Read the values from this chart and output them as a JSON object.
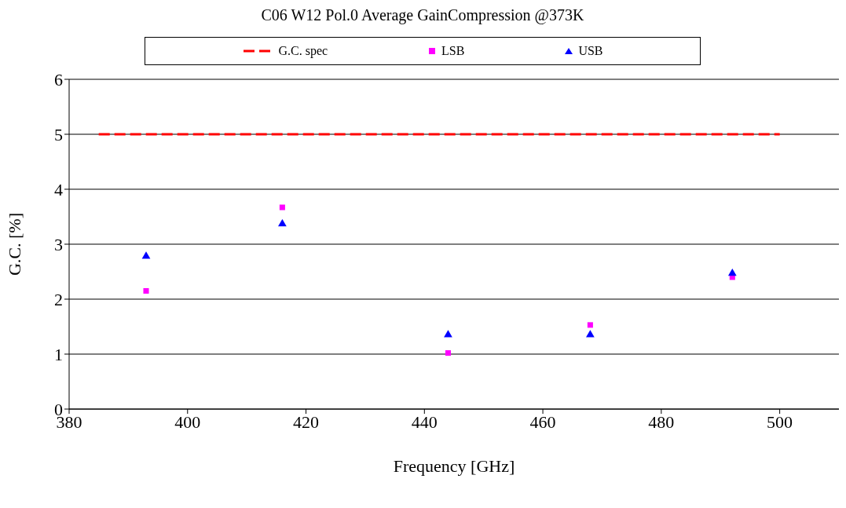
{
  "chart_data": {
    "type": "scatter",
    "title": "C06 W12 Pol.0 Average GainCompression @373K",
    "xlabel": "Frequency [GHz]",
    "ylabel": "G.C. [%]",
    "xlim": [
      380,
      510
    ],
    "xticks": [
      380,
      400,
      420,
      440,
      460,
      480,
      500
    ],
    "ylim": [
      0,
      6
    ],
    "yticks": [
      0,
      1,
      2,
      3,
      4,
      5,
      6
    ],
    "grid": "y",
    "legend": "top",
    "series": [
      {
        "name": "G.C. spec",
        "type": "line",
        "color": "#ff0000",
        "line_style": "dashed",
        "marker": "none",
        "x": [
          385,
          500
        ],
        "values": [
          5,
          5
        ]
      },
      {
        "name": "LSB",
        "color": "#ff00ff",
        "marker": "square",
        "x": [
          393,
          416,
          444,
          468,
          492
        ],
        "values": [
          2.15,
          3.67,
          1.02,
          1.53,
          2.4
        ]
      },
      {
        "name": "USB",
        "color": "#0000ff",
        "marker": "triangle",
        "x": [
          393,
          416,
          444,
          468,
          492
        ],
        "values": [
          2.78,
          3.37,
          1.35,
          1.35,
          2.47
        ]
      }
    ]
  }
}
